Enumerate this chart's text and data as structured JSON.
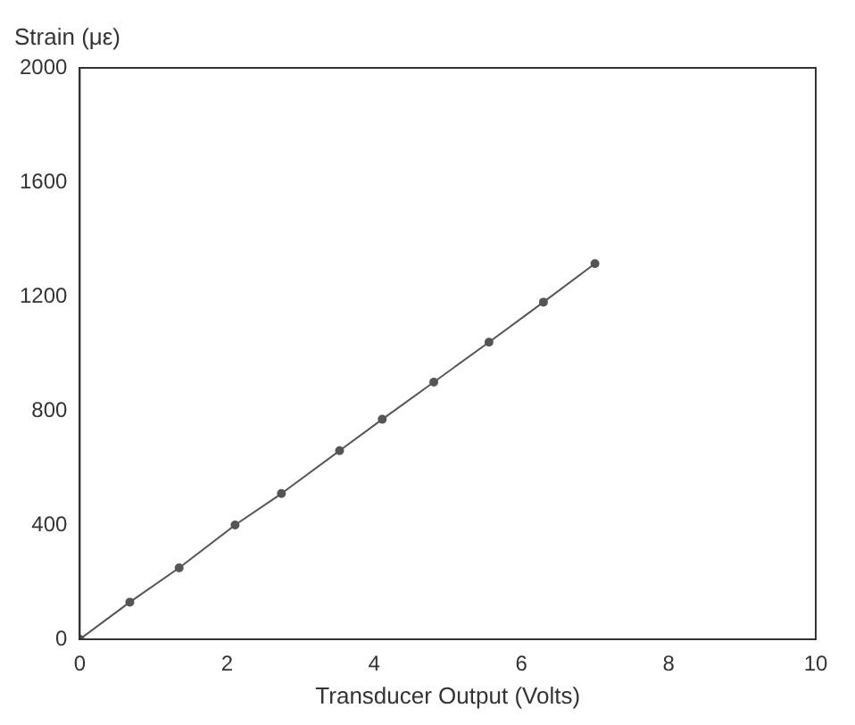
{
  "chart_data": {
    "type": "line",
    "ylabel": "Strain (με)",
    "xlabel": "Transducer Output (Volts)",
    "x": [
      0,
      0.68,
      1.35,
      2.11,
      2.74,
      3.53,
      4.11,
      4.81,
      5.56,
      6.3,
      7.0
    ],
    "series": [
      {
        "color": "#555555",
        "values": [
          0,
          130,
          250,
          400,
          510,
          660,
          770,
          900,
          1040,
          1180,
          1315
        ]
      }
    ],
    "xlim": [
      0,
      10
    ],
    "xticks": [
      0,
      2,
      4,
      6,
      8,
      10
    ],
    "ylim": [
      0,
      2000
    ],
    "yticks": [
      0,
      400,
      800,
      1200,
      1600,
      2000
    ],
    "marker": "circle",
    "line_style": "solid",
    "legend": false,
    "grid": false
  }
}
